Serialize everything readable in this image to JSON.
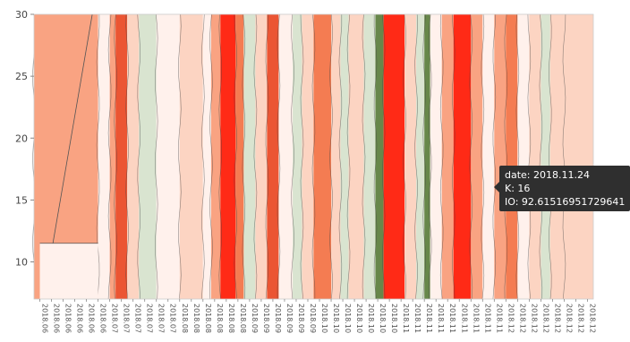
{
  "chart_data": {
    "type": "heatmap",
    "subtype": "contour",
    "title": "",
    "xlabel": "",
    "ylabel": "",
    "ylim": [
      7,
      30
    ],
    "y_ticks": [
      10,
      15,
      20,
      25,
      30
    ],
    "x_tick_count": 48,
    "x_tick_labels": [
      "2018.06",
      "2018.06",
      "2018.06",
      "2018.06",
      "2018.06",
      "2018.06",
      "2018.07",
      "2018.07",
      "2018.07",
      "2018.07",
      "2018.07",
      "2018.07",
      "2018.08",
      "2018.08",
      "2018.08",
      "2018.08",
      "2018.08",
      "2018.08",
      "2018.09",
      "2018.09",
      "2018.09",
      "2018.09",
      "2018.09",
      "2018.09",
      "2018.10",
      "2018.10",
      "2018.10",
      "2018.10",
      "2018.10",
      "2018.10",
      "2018.10",
      "2018.11",
      "2018.11",
      "2018.11",
      "2018.11",
      "2018.11",
      "2018.11",
      "2018.11",
      "2018.11",
      "2018.11",
      "2018.12",
      "2018.12",
      "2018.12",
      "2018.12",
      "2018.12",
      "2018.12",
      "2018.12",
      "2018.12"
    ],
    "colorscale": [
      "#67874a",
      "#d9e4d0",
      "#fff1ec",
      "#fcd4c2",
      "#f9a382",
      "#f47c52",
      "#eb5533",
      "#ff2a16"
    ],
    "bands": [
      {
        "x0": 0,
        "x1": 5.5,
        "level": 4
      },
      {
        "x0": 5.5,
        "x1": 6.5,
        "level": 2
      },
      {
        "x0": 6.5,
        "x1": 7.0,
        "level": 4
      },
      {
        "x0": 7.0,
        "x1": 8.0,
        "level": 6
      },
      {
        "x0": 8.0,
        "x1": 9.0,
        "level": 3
      },
      {
        "x0": 9.0,
        "x1": 10.5,
        "level": 1
      },
      {
        "x0": 10.5,
        "x1": 12.5,
        "level": 2
      },
      {
        "x0": 12.5,
        "x1": 14.5,
        "level": 3
      },
      {
        "x0": 14.5,
        "x1": 15.2,
        "level": 2
      },
      {
        "x0": 15.2,
        "x1": 16.0,
        "level": 4
      },
      {
        "x0": 16.0,
        "x1": 17.3,
        "level": 7
      },
      {
        "x0": 17.3,
        "x1": 18.0,
        "level": 5
      },
      {
        "x0": 18.0,
        "x1": 19.0,
        "level": 1
      },
      {
        "x0": 19.0,
        "x1": 20.0,
        "level": 3
      },
      {
        "x0": 20.0,
        "x1": 21.0,
        "level": 6
      },
      {
        "x0": 21.0,
        "x1": 22.2,
        "level": 2
      },
      {
        "x0": 22.2,
        "x1": 23.0,
        "level": 1
      },
      {
        "x0": 23.0,
        "x1": 24.0,
        "level": 3
      },
      {
        "x0": 24.0,
        "x1": 25.5,
        "level": 5
      },
      {
        "x0": 25.5,
        "x1": 26.3,
        "level": 3
      },
      {
        "x0": 26.3,
        "x1": 27.0,
        "level": 1
      },
      {
        "x0": 27.0,
        "x1": 28.3,
        "level": 3
      },
      {
        "x0": 28.3,
        "x1": 29.3,
        "level": 1
      },
      {
        "x0": 29.3,
        "x1": 30.0,
        "level": 0
      },
      {
        "x0": 30.0,
        "x1": 31.8,
        "level": 7
      },
      {
        "x0": 31.8,
        "x1": 32.8,
        "level": 3
      },
      {
        "x0": 32.8,
        "x1": 33.5,
        "level": 1
      },
      {
        "x0": 33.5,
        "x1": 34.0,
        "level": 0
      },
      {
        "x0": 34.0,
        "x1": 35.0,
        "level": 2
      },
      {
        "x0": 35.0,
        "x1": 36.0,
        "level": 4
      },
      {
        "x0": 36.0,
        "x1": 37.5,
        "level": 7
      },
      {
        "x0": 37.5,
        "x1": 38.5,
        "level": 4
      },
      {
        "x0": 38.5,
        "x1": 39.5,
        "level": 2
      },
      {
        "x0": 39.5,
        "x1": 40.5,
        "level": 4
      },
      {
        "x0": 40.5,
        "x1": 41.5,
        "level": 5
      },
      {
        "x0": 41.5,
        "x1": 42.5,
        "level": 2
      },
      {
        "x0": 42.5,
        "x1": 43.5,
        "level": 3
      },
      {
        "x0": 43.5,
        "x1": 44.3,
        "level": 1
      },
      {
        "x0": 44.3,
        "x1": 45.5,
        "level": 3
      },
      {
        "x0": 45.5,
        "x1": 48.0,
        "level": 3
      }
    ],
    "bottom_region": {
      "x0": 0.5,
      "x1": 5.5,
      "y_top": 11.5,
      "level": 2
    },
    "diagonal_region": {
      "x_bottom": 0.8,
      "x_top": 5.0,
      "level": 3
    }
  },
  "tooltip": {
    "date": "date: 2018.11.24",
    "k": "K: 16",
    "io": "IO: 92.61516951729641"
  }
}
